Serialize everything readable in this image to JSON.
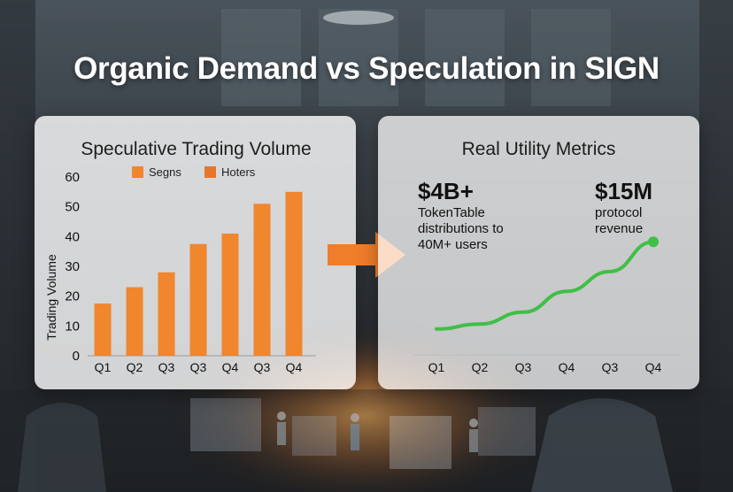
{
  "title": "Organic Demand vs Speculation in SIGN",
  "colors": {
    "bar": "#f0862d",
    "line": "#3fbf46",
    "arrow": "#f07d2a"
  },
  "left_panel": {
    "title": "Speculative Trading Volume",
    "legend": [
      {
        "label": "Segns",
        "color": "#f0862d"
      },
      {
        "label": "Hoters",
        "color": "#e5762a"
      }
    ],
    "ylabel": "Trading Volume"
  },
  "right_panel": {
    "title": "Real Utility Metrics",
    "metrics": [
      {
        "value": "$4B+",
        "lines": [
          "TokenTable",
          "distributions to",
          "40M+ users"
        ]
      },
      {
        "value": "$15M",
        "lines": [
          "protocol",
          "revenue"
        ]
      }
    ]
  },
  "chart_data": [
    {
      "type": "bar",
      "title": "Speculative Trading Volume",
      "xlabel": "",
      "ylabel": "Trading Volume",
      "categories": [
        "Q1",
        "Q2",
        "Q3",
        "Q3",
        "Q4",
        "Q3",
        "Q4"
      ],
      "values": [
        17.5,
        23,
        28,
        37.5,
        41,
        51,
        55
      ],
      "ylim": [
        0,
        60
      ],
      "yticks": [
        0,
        10,
        20,
        30,
        40,
        50,
        60
      ],
      "legend": [
        "Segns",
        "Hoters"
      ],
      "legend_position": "top"
    },
    {
      "type": "line",
      "title": "Real Utility Metrics",
      "categories": [
        "Q1",
        "Q2",
        "Q3",
        "Q4",
        "Q3",
        "Q4"
      ],
      "values": [
        1,
        1.5,
        2.7,
        4.8,
        6.8,
        9.8
      ],
      "ylim": [
        0,
        10
      ],
      "end_marker": true
    }
  ]
}
